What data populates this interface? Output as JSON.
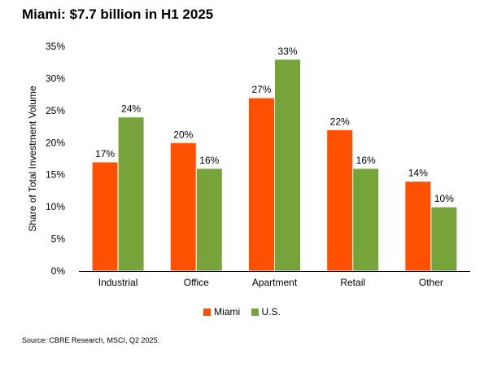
{
  "chart_data": {
    "type": "bar",
    "title": "Miami: $7.7 billion in H1 2025",
    "ylabel": "Share of Total Investment Volume",
    "xlabel": "",
    "categories": [
      "Industrial",
      "Office",
      "Apartment",
      "Retail",
      "Other"
    ],
    "series": [
      {
        "name": "Miami",
        "color": "#ff5000",
        "values": [
          17,
          20,
          27,
          22,
          14
        ],
        "labels": [
          "17%",
          "20%",
          "27%",
          "22%",
          "14%"
        ]
      },
      {
        "name": "U.S.",
        "color": "#76a33a",
        "values": [
          24,
          16,
          33,
          16,
          10
        ],
        "labels": [
          "24%",
          "16%",
          "33%",
          "16%",
          "10%"
        ]
      }
    ],
    "ylim": [
      0,
      35
    ],
    "yticks": [
      0,
      5,
      10,
      15,
      20,
      25,
      30,
      35
    ],
    "ytick_labels": [
      "0%",
      "5%",
      "10%",
      "15%",
      "20%",
      "25%",
      "30%",
      "35%"
    ],
    "grid": false,
    "legend_position": "bottom-center"
  },
  "source": "Source: CBRE Research, MSCI, Q2 2025."
}
